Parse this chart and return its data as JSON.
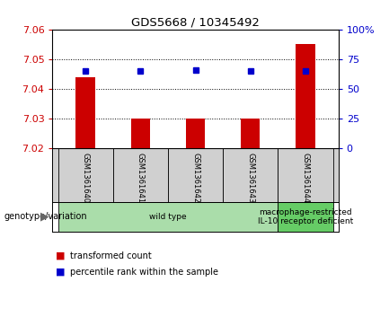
{
  "title": "GDS5668 / 10345492",
  "samples": [
    "GSM1361640",
    "GSM1361641",
    "GSM1361642",
    "GSM1361643",
    "GSM1361644"
  ],
  "bar_values": [
    7.044,
    7.03,
    7.03,
    7.03,
    7.055
  ],
  "bar_baseline": 7.02,
  "percentile_values": [
    65,
    65,
    66,
    65,
    65
  ],
  "ylim": [
    7.02,
    7.06
  ],
  "ylim_right": [
    0,
    100
  ],
  "yticks_left": [
    7.02,
    7.03,
    7.04,
    7.05,
    7.06
  ],
  "yticks_right": [
    0,
    25,
    50,
    75,
    100
  ],
  "bar_color": "#cc0000",
  "dot_color": "#0000cc",
  "grid_color": "#000000",
  "bg_color": "#ffffff",
  "plot_bg": "#ffffff",
  "tick_label_color_left": "#cc0000",
  "tick_label_color_right": "#0000cc",
  "sample_box_color": "#d0d0d0",
  "genotype_groups": [
    {
      "label": "wild type",
      "samples": [
        0,
        1,
        2,
        3
      ],
      "color": "#aaddaa"
    },
    {
      "label": "macrophage-restricted\nIL-10 receptor deficient",
      "samples": [
        4
      ],
      "color": "#66cc66"
    }
  ],
  "legend_items": [
    {
      "label": "transformed count",
      "color": "#cc0000"
    },
    {
      "label": "percentile rank within the sample",
      "color": "#0000cc"
    }
  ]
}
